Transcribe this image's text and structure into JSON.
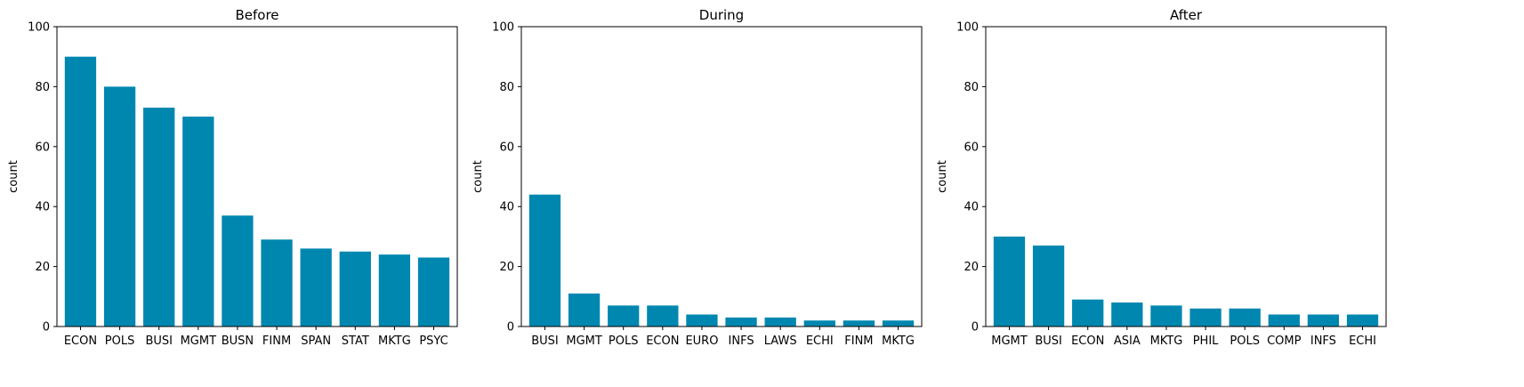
{
  "chart_data": [
    {
      "type": "bar",
      "title": "Before",
      "xlabel": "",
      "ylabel": "count",
      "ylim": [
        0,
        100
      ],
      "yticks": [
        0,
        20,
        40,
        60,
        80,
        100
      ],
      "bar_color": "#0087b0",
      "categories": [
        "ECON",
        "POLS",
        "BUSI",
        "MGMT",
        "BUSN",
        "FINM",
        "SPAN",
        "STAT",
        "MKTG",
        "PSYC"
      ],
      "values": [
        90,
        80,
        73,
        70,
        37,
        29,
        26,
        25,
        24,
        23
      ]
    },
    {
      "type": "bar",
      "title": "During",
      "xlabel": "",
      "ylabel": "count",
      "ylim": [
        0,
        100
      ],
      "yticks": [
        0,
        20,
        40,
        60,
        80,
        100
      ],
      "bar_color": "#0087b0",
      "categories": [
        "BUSI",
        "MGMT",
        "POLS",
        "ECON",
        "EURO",
        "INFS",
        "LAWS",
        "ECHI",
        "FINM",
        "MKTG"
      ],
      "values": [
        44,
        11,
        7,
        7,
        4,
        3,
        3,
        2,
        2,
        2
      ]
    },
    {
      "type": "bar",
      "title": "After",
      "xlabel": "",
      "ylabel": "count",
      "ylim": [
        0,
        100
      ],
      "yticks": [
        0,
        20,
        40,
        60,
        80,
        100
      ],
      "bar_color": "#0087b0",
      "categories": [
        "MGMT",
        "BUSI",
        "ECON",
        "ASIA",
        "MKTG",
        "PHIL",
        "POLS",
        "COMP",
        "INFS",
        "ECHI"
      ],
      "values": [
        30,
        27,
        9,
        8,
        7,
        6,
        6,
        4,
        4,
        4
      ]
    }
  ]
}
